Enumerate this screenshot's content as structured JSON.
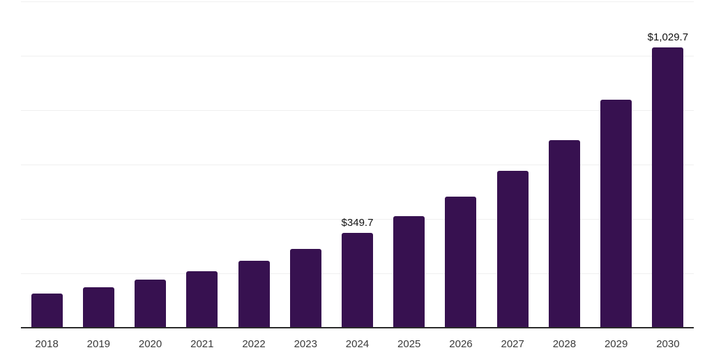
{
  "chart_data": {
    "type": "bar",
    "title": "",
    "xlabel": "",
    "ylabel": "",
    "categories": [
      "2018",
      "2019",
      "2020",
      "2021",
      "2022",
      "2023",
      "2024",
      "2025",
      "2026",
      "2027",
      "2028",
      "2029",
      "2030"
    ],
    "values": [
      125.6,
      148.7,
      176.9,
      207.7,
      246.2,
      289.7,
      349.7,
      411.0,
      483.3,
      577.0,
      689.7,
      838.5,
      1029.7
    ],
    "labeled_points": [
      {
        "category": "2024",
        "label": "$349.7"
      },
      {
        "category": "2030",
        "label": "$1,029.7"
      }
    ],
    "ylim": [
      0,
      1200
    ],
    "gridline_step": 200,
    "grid": true,
    "legend": "none",
    "y_tick_labels_shown": false,
    "colors": {
      "bar": "#371150",
      "grid": "#f0f0f0",
      "axis": "#2b2b2b",
      "tick_label": "#3a3a3a",
      "data_label": "#111111",
      "background": "#ffffff"
    }
  }
}
